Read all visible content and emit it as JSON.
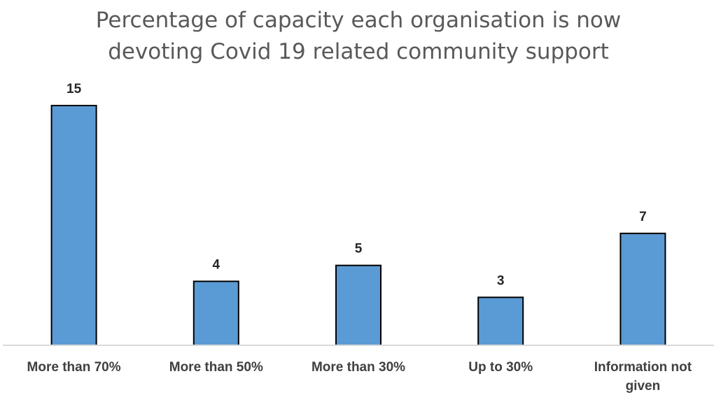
{
  "chart_data": {
    "type": "bar",
    "title_lines": [
      "Percentage of capacity each organisation is now",
      "devoting Covid 19 related community support"
    ],
    "categories": [
      [
        "More than 70%"
      ],
      [
        "More than 50%"
      ],
      [
        "More than 30%"
      ],
      [
        "Up to 30%"
      ],
      [
        "Information not",
        "given"
      ]
    ],
    "values": [
      15,
      4,
      5,
      3,
      7
    ],
    "data_labels": [
      "15",
      "4",
      "5",
      "3",
      "7"
    ],
    "xlabel": "",
    "ylabel": "",
    "ylim": [
      0,
      15
    ],
    "grid": false,
    "legend": "none",
    "colors": {
      "bar_fill": "#5b9bd5",
      "bar_outline": "#000000",
      "axis": "#d9d9d9",
      "title": "#595959"
    }
  }
}
